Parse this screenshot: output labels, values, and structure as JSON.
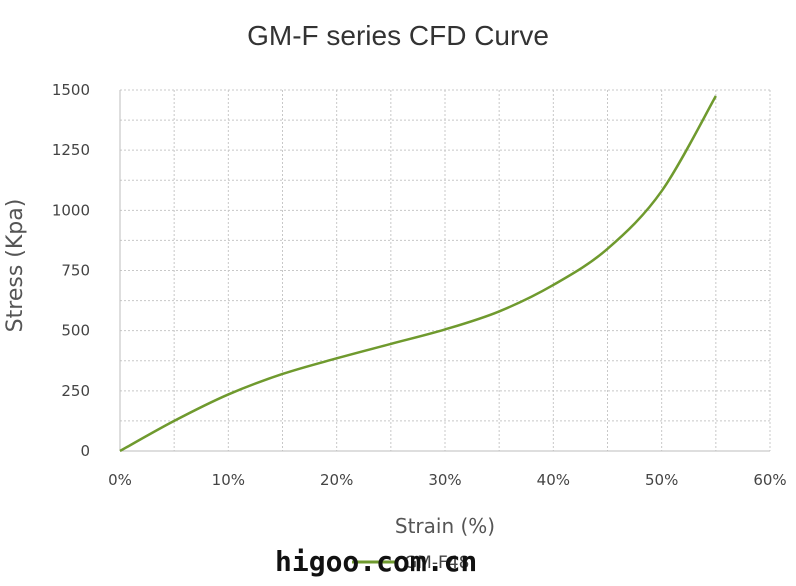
{
  "chart_data": {
    "type": "line",
    "title": "GM-F series CFD Curve",
    "xlabel": "Strain (%)",
    "ylabel": "Stress (Kpa)",
    "x_ticks": [
      "0%",
      "10%",
      "20%",
      "30%",
      "40%",
      "50%",
      "60%"
    ],
    "y_ticks": [
      "0",
      "250",
      "500",
      "750",
      "1000",
      "1250",
      "1500"
    ],
    "xlim": [
      0,
      60
    ],
    "ylim": [
      0,
      1500
    ],
    "grid": true,
    "legend_position": "bottom",
    "series": [
      {
        "name": "GM-F48",
        "color": "#6f9a2e",
        "x": [
          0,
          5,
          10,
          15,
          20,
          25,
          30,
          35,
          40,
          45,
          50,
          55
        ],
        "y": [
          0,
          125,
          235,
          320,
          385,
          445,
          505,
          580,
          690,
          840,
          1080,
          1475
        ]
      }
    ]
  },
  "watermark": "higoo.com.cn"
}
